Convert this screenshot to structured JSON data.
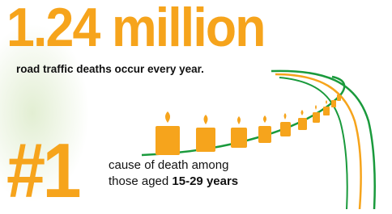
{
  "headline": {
    "figure": "1.24 million",
    "caption": "road traffic deaths occur every year."
  },
  "rank": {
    "figure": "#1",
    "line1": "cause of death among",
    "line2_prefix": "those aged",
    "line2_emphasis": "15-29 years"
  }
}
